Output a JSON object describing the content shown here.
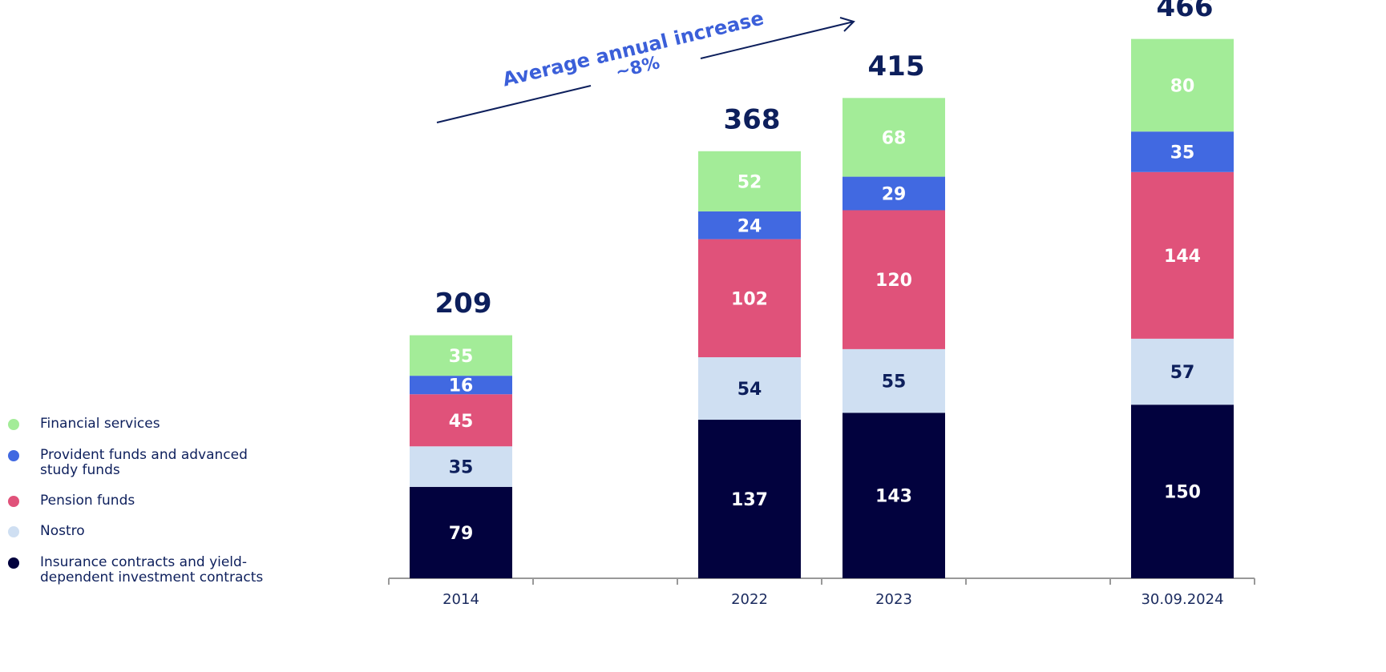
{
  "chart_data": {
    "type": "stacked_bar",
    "annotation": [
      "Average annual increase",
      "~8%"
    ],
    "categories": [
      "2014",
      null,
      "2022",
      "2023",
      null,
      "30.09.2024"
    ],
    "totals": [
      209,
      null,
      368,
      415,
      null,
      466
    ],
    "series": [
      {
        "name": "Insurance contracts and yield-dependent investment contracts",
        "color": "#02023e",
        "label_color": "#ffffff",
        "values": [
          79,
          null,
          137,
          143,
          null,
          150
        ]
      },
      {
        "name": "Nostro",
        "color": "#cfdff2",
        "label_color": "#0d1f5c",
        "values": [
          35,
          null,
          54,
          55,
          null,
          57
        ]
      },
      {
        "name": "Pension funds",
        "color": "#e0527a",
        "label_color": "#ffffff",
        "values": [
          45,
          null,
          102,
          120,
          null,
          144
        ]
      },
      {
        "name": "Provident funds and advanced study funds",
        "color": "#4169e1",
        "label_color": "#ffffff",
        "values": [
          16,
          null,
          24,
          29,
          null,
          35
        ]
      },
      {
        "name": "Financial services",
        "color": "#a3ec98",
        "label_color": "#ffffff",
        "values": [
          35,
          null,
          52,
          68,
          null,
          80
        ]
      }
    ]
  }
}
